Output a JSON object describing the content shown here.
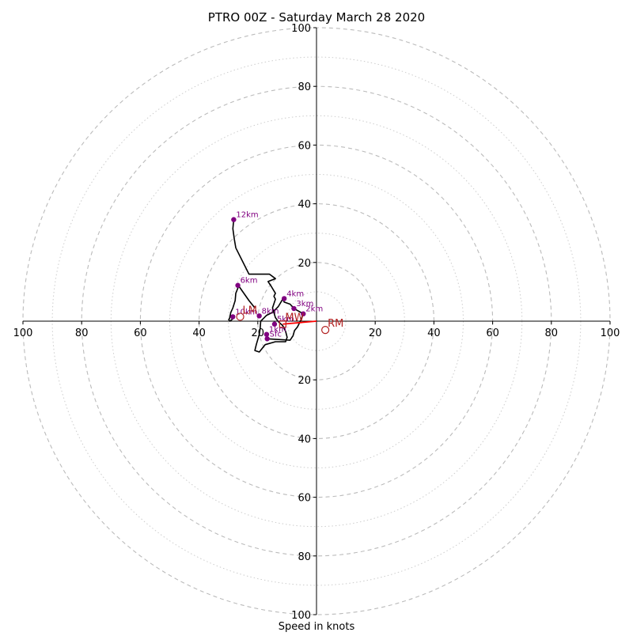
{
  "chart_data": {
    "type": "scatter",
    "chart_kind": "hodograph",
    "title": "PTRO 00Z - Saturday March 28 2020",
    "xlabel": "Speed in knots",
    "ylabel": "",
    "xlim": [
      -100,
      100
    ],
    "ylim": [
      -100,
      100
    ],
    "rings_major": [
      20,
      40,
      60,
      80,
      100
    ],
    "rings_minor": [
      10,
      30,
      50,
      70,
      90
    ],
    "x_tick_labels": [
      {
        "v": -100,
        "label": "100"
      },
      {
        "v": -80,
        "label": "80"
      },
      {
        "v": -60,
        "label": "60"
      },
      {
        "v": -40,
        "label": "40"
      },
      {
        "v": -20,
        "label": "20"
      },
      {
        "v": 20,
        "label": "20"
      },
      {
        "v": 40,
        "label": "40"
      },
      {
        "v": 60,
        "label": "60"
      },
      {
        "v": 80,
        "label": "80"
      },
      {
        "v": 100,
        "label": "100"
      }
    ],
    "y_tick_labels": [
      {
        "v": 100,
        "label": "100"
      },
      {
        "v": 80,
        "label": "80"
      },
      {
        "v": 60,
        "label": "60"
      },
      {
        "v": 40,
        "label": "40"
      },
      {
        "v": 20,
        "label": "20"
      },
      {
        "v": -20,
        "label": "20"
      },
      {
        "v": -40,
        "label": "40"
      },
      {
        "v": -60,
        "label": "60"
      },
      {
        "v": -80,
        "label": "80"
      },
      {
        "v": -100,
        "label": "100"
      }
    ],
    "hodograph_trace": [
      [
        -16.8,
        -6.0
      ],
      [
        -9,
        -6.5
      ],
      [
        -8,
        -5
      ],
      [
        -7.5,
        -3.2
      ],
      [
        -6.5,
        -2
      ],
      [
        -5.5,
        0
      ],
      [
        -4.5,
        2.5
      ],
      [
        -7.5,
        4.2
      ],
      [
        -9,
        5.8
      ],
      [
        -11,
        6.5
      ],
      [
        -11.5,
        7.5
      ],
      [
        -13,
        5
      ],
      [
        -15,
        3
      ],
      [
        -17,
        2
      ],
      [
        -18,
        1
      ],
      [
        -19,
        0
      ],
      [
        -19.2,
        -2.5
      ],
      [
        -19.5,
        -4.5
      ],
      [
        -20.5,
        -8
      ],
      [
        -21,
        -10
      ],
      [
        -19.5,
        -10.5
      ],
      [
        -17.5,
        -8
      ],
      [
        -14,
        -7
      ],
      [
        -10.5,
        -7
      ],
      [
        -10,
        -5.5
      ],
      [
        -10.5,
        -3.5
      ],
      [
        -11.5,
        -1.5
      ],
      [
        -13,
        -0.2
      ],
      [
        -14,
        1.2
      ],
      [
        -15,
        4.5
      ],
      [
        -14,
        7.5
      ],
      [
        -14.5,
        8.5
      ],
      [
        -14,
        9.5
      ],
      [
        -15.5,
        12
      ],
      [
        -16.5,
        13.5
      ],
      [
        -14,
        14.5
      ],
      [
        -16,
        16
      ],
      [
        -19,
        16
      ],
      [
        -23,
        16
      ],
      [
        -27.5,
        25
      ],
      [
        -28,
        28
      ],
      [
        -28.5,
        31.5
      ],
      [
        -28.2,
        34.6
      ]
    ],
    "trace_branch": [
      [
        -21,
        4.5
      ],
      [
        -23,
        7
      ],
      [
        -26.5,
        12
      ],
      [
        -27.5,
        9.5
      ],
      [
        -27.7,
        7
      ],
      [
        -28.5,
        4.5
      ],
      [
        -29.2,
        3
      ],
      [
        -29.6,
        1
      ],
      [
        -29.9,
        0.5
      ],
      [
        -29.5,
        0
      ],
      [
        -28.5,
        0.8
      ]
    ],
    "height_markers": [
      {
        "label": "Sfc",
        "u": -16.8,
        "v": -6.0
      },
      {
        "label": "1km",
        "u": -17.0,
        "v": -4.5
      },
      {
        "label": "2km",
        "u": -4.5,
        "v": 2.5
      },
      {
        "label": "3km",
        "u": -7.7,
        "v": 4.3
      },
      {
        "label": "4km",
        "u": -11,
        "v": 7.7
      },
      {
        "label": "5km",
        "u": -14.3,
        "v": -1
      },
      {
        "label": "6km",
        "u": -26.8,
        "v": 12.2
      },
      {
        "label": "8km",
        "u": -19.5,
        "v": 1.8
      },
      {
        "label": "10km",
        "u": -28.5,
        "v": 1.5
      },
      {
        "label": "12km",
        "u": -28.2,
        "v": 34.6
      }
    ],
    "storm_motion_markers": [
      {
        "label": "RM",
        "u": 3,
        "v": -3,
        "shape": "circle"
      },
      {
        "label": "MW",
        "u": -11.5,
        "v": -1,
        "shape": "square"
      },
      {
        "label": "LM",
        "u": -26,
        "v": 1.5,
        "shape": "circle"
      }
    ],
    "shear_vector": {
      "from": {
        "u": -11.5,
        "v": -1
      },
      "to": {
        "u": 0,
        "v": 0
      }
    },
    "colors": {
      "trace": "#000000",
      "markers": "#800080",
      "storm_motion": "#b22222",
      "shear_vector": "#ff0000",
      "rings": "#bbbbbb",
      "axes": "#000000"
    }
  }
}
